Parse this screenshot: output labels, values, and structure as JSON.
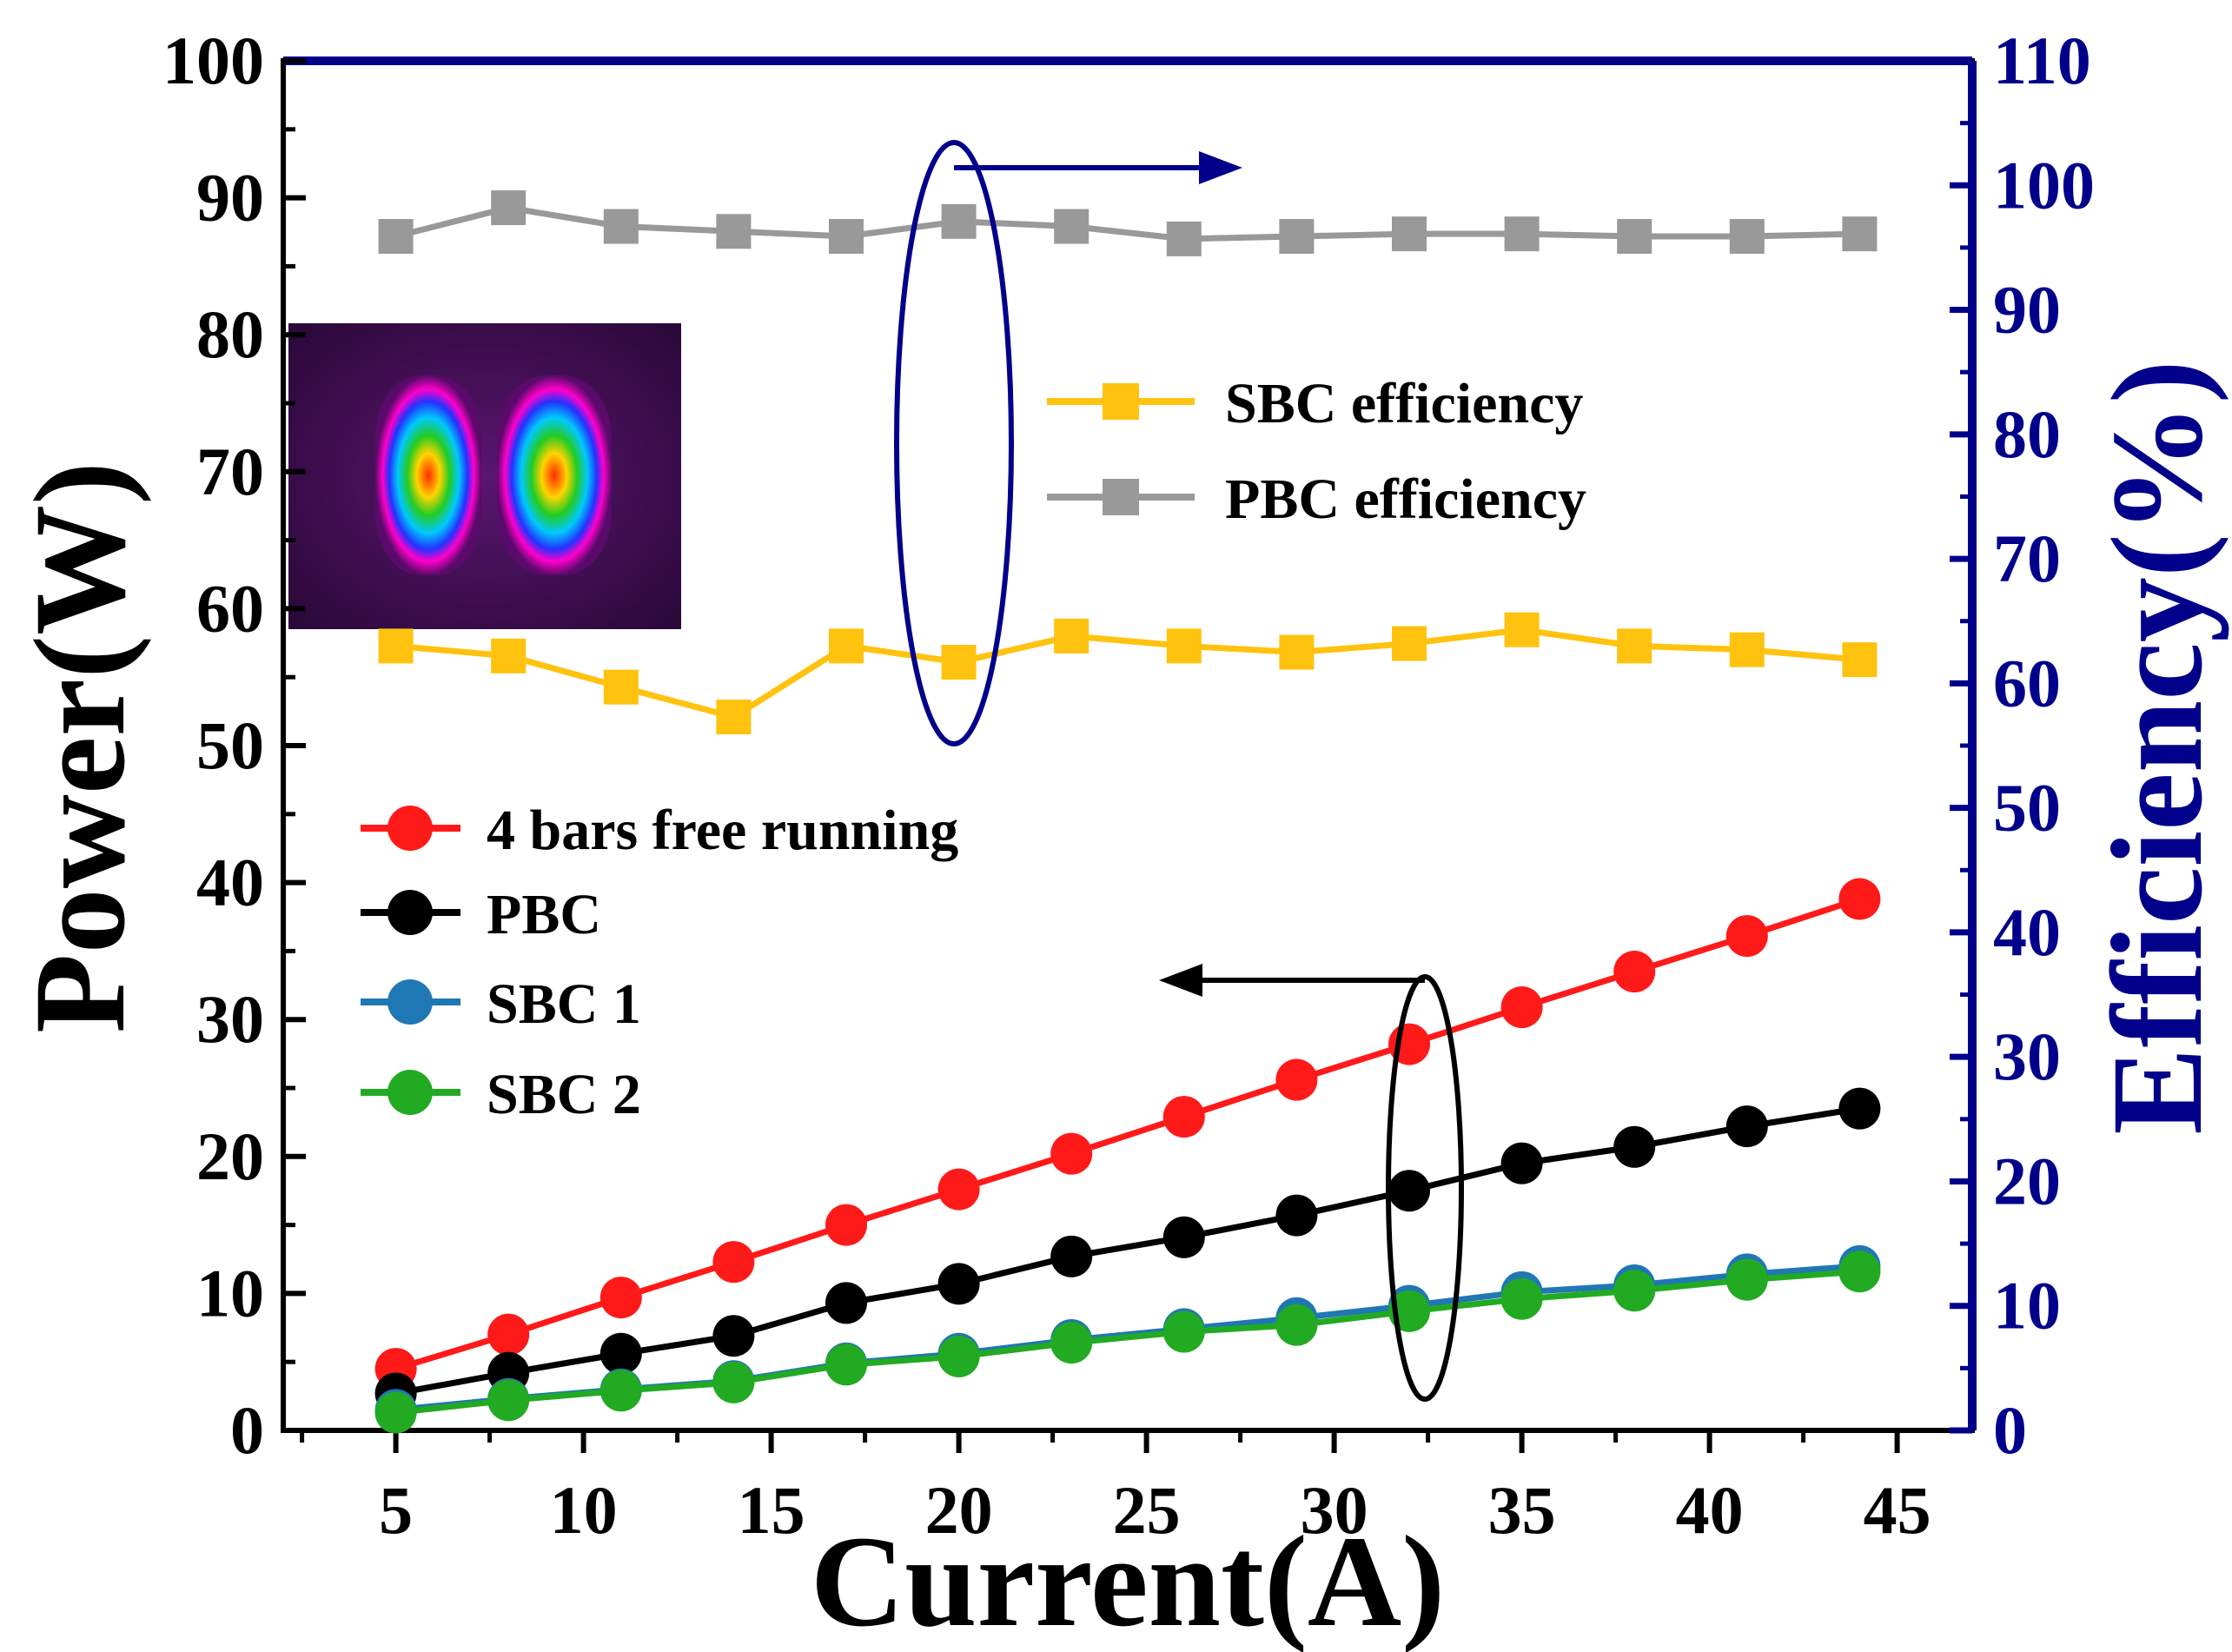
{
  "chart_data": {
    "type": "line",
    "xlabel": "Current(A)",
    "ylabel": "Power(W)",
    "y2label": "Efficiency(%)",
    "xlim": [
      2,
      47
    ],
    "ylim": [
      0,
      100
    ],
    "y2lim": [
      0,
      110
    ],
    "x_ticks": [
      5,
      10,
      15,
      20,
      25,
      30,
      35,
      40,
      45
    ],
    "y_ticks": [
      0,
      10,
      20,
      30,
      40,
      50,
      60,
      70,
      80,
      90,
      100
    ],
    "y2_ticks": [
      0,
      10,
      20,
      30,
      40,
      50,
      60,
      70,
      80,
      90,
      100,
      110
    ],
    "x": [
      5,
      8,
      11,
      14,
      17,
      20,
      23,
      26,
      29,
      32,
      35,
      38,
      41,
      44
    ],
    "series": [
      {
        "name": "4 bars free running",
        "axis": "left",
        "marker": "circle",
        "color": "#ff1a1a",
        "values": [
          4.5,
          7.0,
          9.7,
          12.3,
          15.0,
          17.6,
          20.2,
          22.9,
          25.6,
          28.2,
          30.9,
          33.5,
          36.1,
          38.8
        ]
      },
      {
        "name": "PBC",
        "axis": "left",
        "marker": "circle",
        "color": "#000000",
        "values": [
          2.7,
          4.2,
          5.6,
          6.9,
          9.3,
          10.7,
          12.7,
          14.1,
          15.7,
          17.5,
          19.5,
          20.7,
          22.2,
          23.5
        ]
      },
      {
        "name": "SBC 1",
        "axis": "left",
        "marker": "circle",
        "color": "#1f77b4",
        "values": [
          1.5,
          2.3,
          3.0,
          3.6,
          4.9,
          5.6,
          6.6,
          7.4,
          8.2,
          9.1,
          10.1,
          10.6,
          11.4,
          12.0
        ]
      },
      {
        "name": "SBC 2",
        "axis": "left",
        "marker": "circle",
        "color": "#22aa22",
        "values": [
          1.3,
          2.2,
          2.9,
          3.5,
          4.8,
          5.4,
          6.4,
          7.2,
          7.7,
          8.7,
          9.6,
          10.2,
          11.0,
          11.6
        ]
      },
      {
        "name": "SBC efficiency",
        "axis": "right",
        "marker": "square",
        "color": "#ffc20e",
        "values": [
          63.0,
          62.2,
          59.7,
          57.3,
          63.0,
          61.7,
          63.8,
          63.0,
          62.5,
          63.2,
          64.3,
          63.0,
          62.7,
          61.9
        ]
      },
      {
        "name": "PBC efficiency",
        "axis": "right",
        "marker": "square",
        "color": "#999999",
        "values": [
          95.9,
          98.2,
          96.7,
          96.3,
          95.9,
          97.1,
          96.7,
          95.7,
          95.9,
          96.1,
          96.1,
          95.9,
          95.9,
          96.1
        ]
      }
    ],
    "annotations": {
      "efficiency_group": {
        "x": 20,
        "arrow_direction": "right",
        "axis": "right",
        "color": "#00008b"
      },
      "power_group": {
        "x": 32,
        "arrow_direction": "left",
        "axis": "left",
        "color": "#000000"
      }
    },
    "inset": {
      "name": "beam-profile-image",
      "description_icon": "beam-spot-image"
    },
    "colors": {
      "right_axis": "#00008b",
      "left_axis": "#000000"
    }
  }
}
